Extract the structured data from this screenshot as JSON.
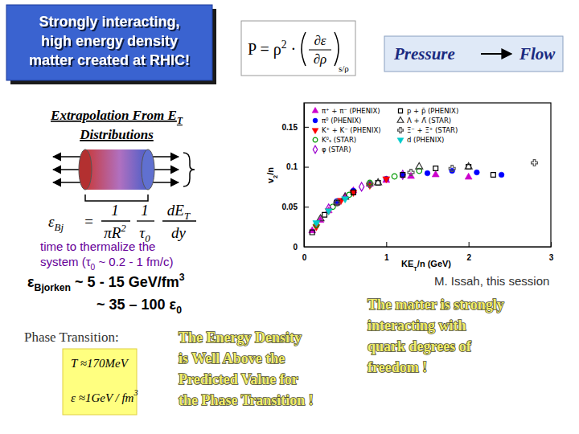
{
  "chart_data": {
    "type": "scatter",
    "xlabel": [
      "KE",
      "T",
      "/n (GeV)"
    ],
    "ylabel": [
      "v",
      "2",
      "/n"
    ],
    "xlim": [
      0,
      3
    ],
    "ylim": [
      0,
      0.18
    ],
    "xticks": [
      0,
      1,
      2,
      3
    ],
    "yticks": [
      0,
      0.05,
      0.1,
      0.15
    ],
    "grid": false,
    "legend": "upper left",
    "series": [
      {
        "name": "π⁺ + π⁻ (PHENIX)",
        "color": "#cc00cc",
        "marker": "triangle-up",
        "x": [
          0.1,
          0.2,
          0.3,
          0.4,
          0.5,
          0.6,
          0.8,
          1.0,
          1.3,
          1.6,
          2.0
        ],
        "values": [
          0.02,
          0.033,
          0.045,
          0.055,
          0.063,
          0.07,
          0.078,
          0.083,
          0.088,
          0.09,
          0.087
        ]
      },
      {
        "name": "π⁰ (PHENIX)",
        "color": "#0000ff",
        "marker": "circle",
        "x": [
          0.4,
          0.6,
          0.8,
          1.0,
          1.2,
          1.5,
          1.8,
          2.1,
          2.4
        ],
        "values": [
          0.057,
          0.07,
          0.078,
          0.085,
          0.09,
          0.092,
          0.095,
          0.093,
          0.09
        ]
      },
      {
        "name": "K⁺ + K⁻ (PHENIX)",
        "color": "#ff0000",
        "marker": "triangle-down",
        "x": [
          0.15,
          0.3,
          0.45,
          0.6,
          0.8,
          1.0
        ],
        "values": [
          0.025,
          0.045,
          0.058,
          0.068,
          0.077,
          0.085
        ]
      },
      {
        "name": "K⁰ₛ (STAR)",
        "color": "#009900",
        "marker": "circle-open",
        "x": [
          0.15,
          0.35,
          0.55,
          0.8,
          1.1,
          1.4
        ],
        "values": [
          0.027,
          0.05,
          0.065,
          0.08,
          0.088,
          0.095
        ]
      },
      {
        "name": "φ (STAR)",
        "color": "#9900cc",
        "marker": "diamond-open",
        "x": [
          0.3,
          0.7,
          1.2
        ],
        "values": [
          0.048,
          0.075,
          0.09
        ]
      },
      {
        "name": "p + p̄ (PHENIX)",
        "color": "#000000",
        "marker": "square-open",
        "x": [
          0.1,
          0.25,
          0.4,
          0.6,
          0.9,
          1.2,
          1.6,
          2.0,
          2.3
        ],
        "values": [
          0.018,
          0.04,
          0.055,
          0.068,
          0.08,
          0.09,
          0.098,
          0.1,
          0.09
        ]
      },
      {
        "name": "Λ + Λ̄ (STAR)",
        "color": "#333333",
        "marker": "triangle-up-open",
        "x": [
          0.2,
          0.5,
          0.9,
          1.4,
          2.0
        ],
        "values": [
          0.035,
          0.062,
          0.08,
          0.1,
          0.1
        ]
      },
      {
        "name": "Ξ⁻ + Ξ̄⁺ (STAR)",
        "color": "#555555",
        "marker": "cross-open",
        "x": [
          0.4,
          0.8,
          1.3,
          1.8,
          2.8
        ],
        "values": [
          0.055,
          0.078,
          0.093,
          0.098,
          0.105
        ]
      },
      {
        "name": "d (PHENIX)",
        "color": "#00cccc",
        "marker": "triangle-down",
        "x": [
          0.15,
          0.3,
          0.5
        ],
        "values": [
          0.03,
          0.045,
          0.06
        ]
      }
    ]
  },
  "slide": {
    "title": [
      "Strongly interacting,",
      "high energy density",
      "matter created at RHIC!"
    ],
    "pressure_formula": {
      "lhs": "P = ρ",
      "power": "2",
      "dot": " ·",
      "numerator": "∂ε",
      "denominator": "∂ρ",
      "subscript": "s/ρ"
    },
    "flow_box": {
      "left": "Pressure",
      "right": "Flow"
    },
    "extrapolation": {
      "line1": "Extrapolation From E",
      "line1_sub": "T",
      "line2": "Distributions"
    },
    "bjorken_formula": {
      "lhs": "ε",
      "lhs_sub": "Bj",
      "equals": "=",
      "f1_num": "1",
      "f1_den": "πR",
      "f1_den_sup": "2",
      "f2_num": "1",
      "f2_den": "τ",
      "f2_den_sub": "0",
      "f3_num": "dE",
      "f3_num_sub": "T",
      "f3_den": "dy"
    },
    "thermalize": {
      "line1": "time to thermalize the",
      "line2": "system (τ",
      "line2_sub": "0",
      "line2_rest": " ~ 0.2 - 1 fm/c)"
    },
    "bjorken_value": {
      "symbol": "ε",
      "sub": "Bjorken",
      "text": " ~ 5 - 15 GeV/fm",
      "sup": "3"
    },
    "epsilon0": {
      "text": "~ 35 – 100 ε",
      "sub": "0"
    },
    "phase_label": "Phase Transition:",
    "phase_T": "T ≈170MeV",
    "phase_eps": {
      "text": "ε ≈1GeV / fm",
      "sup": "3"
    },
    "energy_note": [
      "The Energy Density",
      "is Well Above the",
      "Predicted Value for",
      "the Phase Transition !"
    ],
    "credit": "M. Issah, this session",
    "conclusion": [
      "The matter is strongly",
      "interacting with",
      "quark degrees of",
      "freedom !"
    ]
  }
}
